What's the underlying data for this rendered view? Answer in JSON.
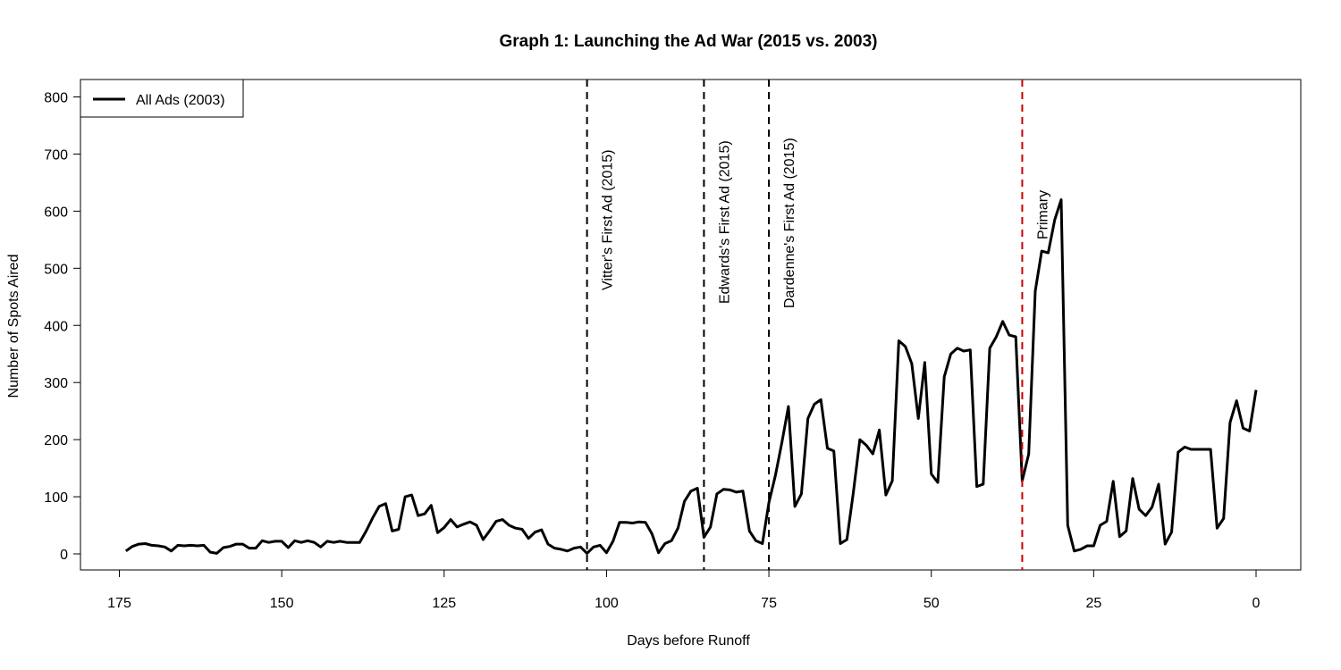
{
  "chart_data": {
    "type": "line",
    "title": "Graph 1: Launching the Ad War (2015 vs. 2003)",
    "xlabel": "Days before Runoff",
    "ylabel": "Number of Spots Aired",
    "xlim": [
      175,
      0
    ],
    "ylim": [
      0,
      800
    ],
    "x_ticks": [
      175,
      150,
      125,
      100,
      75,
      50,
      25,
      0
    ],
    "y_ticks": [
      0,
      100,
      200,
      300,
      400,
      500,
      600,
      700,
      800
    ],
    "grid": false,
    "legend_position": "top-left",
    "series": [
      {
        "name": "All Ads (2003)",
        "color": "#000000",
        "points": [
          [
            174,
            5
          ],
          [
            173,
            13
          ],
          [
            172,
            17
          ],
          [
            171,
            18
          ],
          [
            170,
            15
          ],
          [
            169,
            14
          ],
          [
            168,
            12
          ],
          [
            167,
            5
          ],
          [
            166,
            15
          ],
          [
            165,
            14
          ],
          [
            164,
            15
          ],
          [
            163,
            14
          ],
          [
            162,
            15
          ],
          [
            161,
            3
          ],
          [
            160,
            1
          ],
          [
            159,
            11
          ],
          [
            158,
            13
          ],
          [
            157,
            17
          ],
          [
            156,
            17
          ],
          [
            155,
            10
          ],
          [
            154,
            10
          ],
          [
            153,
            23
          ],
          [
            152,
            20
          ],
          [
            151,
            22
          ],
          [
            150,
            22
          ],
          [
            149,
            11
          ],
          [
            148,
            23
          ],
          [
            147,
            20
          ],
          [
            146,
            23
          ],
          [
            145,
            20
          ],
          [
            144,
            12
          ],
          [
            143,
            22
          ],
          [
            142,
            20
          ],
          [
            141,
            22
          ],
          [
            140,
            20
          ],
          [
            139,
            20
          ],
          [
            138,
            20
          ],
          [
            137,
            40
          ],
          [
            136,
            63
          ],
          [
            135,
            83
          ],
          [
            134,
            88
          ],
          [
            133,
            40
          ],
          [
            132,
            43
          ],
          [
            131,
            100
          ],
          [
            130,
            103
          ],
          [
            129,
            67
          ],
          [
            128,
            70
          ],
          [
            127,
            85
          ],
          [
            126,
            37
          ],
          [
            125,
            46
          ],
          [
            124,
            60
          ],
          [
            123,
            47
          ],
          [
            122,
            52
          ],
          [
            121,
            56
          ],
          [
            120,
            50
          ],
          [
            119,
            25
          ],
          [
            118,
            40
          ],
          [
            117,
            57
          ],
          [
            116,
            60
          ],
          [
            115,
            50
          ],
          [
            114,
            45
          ],
          [
            113,
            43
          ],
          [
            112,
            27
          ],
          [
            111,
            38
          ],
          [
            110,
            42
          ],
          [
            109,
            17
          ],
          [
            108,
            10
          ],
          [
            107,
            8
          ],
          [
            106,
            5
          ],
          [
            105,
            10
          ],
          [
            104,
            12
          ],
          [
            103,
            1
          ],
          [
            102,
            12
          ],
          [
            101,
            15
          ],
          [
            100,
            2
          ],
          [
            99,
            22
          ],
          [
            98,
            55
          ],
          [
            97,
            55
          ],
          [
            96,
            54
          ],
          [
            95,
            56
          ],
          [
            94,
            55
          ],
          [
            93,
            35
          ],
          [
            92,
            2
          ],
          [
            91,
            18
          ],
          [
            90,
            23
          ],
          [
            89,
            45
          ],
          [
            88,
            92
          ],
          [
            87,
            110
          ],
          [
            86,
            115
          ],
          [
            85,
            29
          ],
          [
            84,
            47
          ],
          [
            83,
            105
          ],
          [
            82,
            113
          ],
          [
            81,
            112
          ],
          [
            80,
            108
          ],
          [
            79,
            110
          ],
          [
            78,
            40
          ],
          [
            77,
            23
          ],
          [
            76,
            18
          ],
          [
            75,
            90
          ],
          [
            74,
            137
          ],
          [
            73,
            195
          ],
          [
            72,
            258
          ],
          [
            71,
            83
          ],
          [
            70,
            105
          ],
          [
            69,
            237
          ],
          [
            68,
            262
          ],
          [
            67,
            270
          ],
          [
            66,
            185
          ],
          [
            65,
            180
          ],
          [
            64,
            18
          ],
          [
            63,
            25
          ],
          [
            62,
            107
          ],
          [
            61,
            200
          ],
          [
            60,
            190
          ],
          [
            59,
            175
          ],
          [
            58,
            217
          ],
          [
            57,
            103
          ],
          [
            56,
            128
          ],
          [
            55,
            373
          ],
          [
            54,
            363
          ],
          [
            53,
            333
          ],
          [
            52,
            237
          ],
          [
            51,
            335
          ],
          [
            50,
            140
          ],
          [
            49,
            125
          ],
          [
            48,
            310
          ],
          [
            47,
            350
          ],
          [
            46,
            360
          ],
          [
            45,
            355
          ],
          [
            44,
            357
          ],
          [
            43,
            118
          ],
          [
            42,
            122
          ],
          [
            41,
            360
          ],
          [
            40,
            380
          ],
          [
            39,
            407
          ],
          [
            38,
            383
          ],
          [
            37,
            380
          ],
          [
            36,
            128
          ],
          [
            35,
            175
          ],
          [
            34,
            460
          ],
          [
            33,
            530
          ],
          [
            32,
            527
          ],
          [
            31,
            585
          ],
          [
            30,
            620
          ],
          [
            29,
            50
          ],
          [
            28,
            5
          ],
          [
            27,
            8
          ],
          [
            26,
            14
          ],
          [
            25,
            14
          ],
          [
            24,
            50
          ],
          [
            23,
            57
          ],
          [
            22,
            127
          ],
          [
            21,
            30
          ],
          [
            20,
            40
          ],
          [
            19,
            132
          ],
          [
            18,
            78
          ],
          [
            17,
            67
          ],
          [
            16,
            82
          ],
          [
            15,
            122
          ],
          [
            14,
            17
          ],
          [
            13,
            38
          ],
          [
            12,
            178
          ],
          [
            11,
            187
          ],
          [
            10,
            183
          ],
          [
            9,
            183
          ],
          [
            8,
            183
          ],
          [
            7,
            183
          ],
          [
            6,
            45
          ],
          [
            5,
            62
          ],
          [
            4,
            230
          ],
          [
            3,
            268
          ],
          [
            2,
            220
          ],
          [
            1,
            215
          ],
          [
            0,
            287
          ]
        ]
      }
    ],
    "annotations": [
      {
        "x": 103,
        "label": "Vitter's First Ad (2015)",
        "color": "#000000",
        "dashed": true
      },
      {
        "x": 85,
        "label": "Edwards's First Ad (2015)",
        "color": "#000000",
        "dashed": true
      },
      {
        "x": 75,
        "label": "Dardenne's First Ad (2015)",
        "color": "#000000",
        "dashed": true
      },
      {
        "x": 36,
        "label": "Primary",
        "color": "#cc0000",
        "dashed": true
      }
    ]
  }
}
